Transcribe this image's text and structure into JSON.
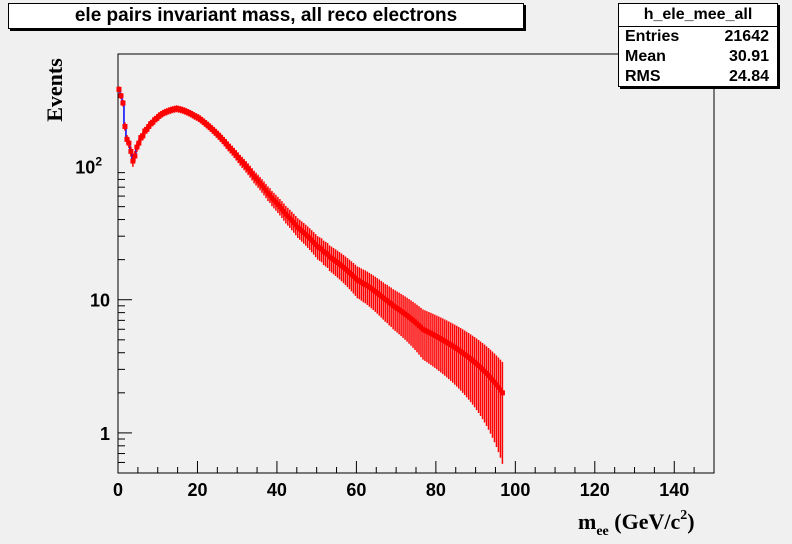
{
  "chart_data": {
    "type": "histogram",
    "title": "ele pairs invariant mass, all reco electrons",
    "xlabel_main": "m",
    "xlabel_sub": "ee",
    "xlabel_unit": " (GeV/c",
    "xlabel_sup": "2",
    "xlabel_close": ")",
    "ylabel": "Events",
    "xlim": [
      0,
      150
    ],
    "ylim": [
      0.5,
      700
    ],
    "yscale": "log",
    "x_ticks": [
      "0",
      "20",
      "40",
      "60",
      "80",
      "100",
      "120",
      "140"
    ],
    "y_ticks": [
      {
        "value": 1,
        "label": "1"
      },
      {
        "value": 10,
        "label": "10"
      },
      {
        "value": 100,
        "label": "10",
        "sup": "2"
      }
    ],
    "series": [
      {
        "type": "histogram-line",
        "color": "#0000ff",
        "bin_width": 0.5,
        "x_start": 0,
        "values": [
          380,
          340,
          300,
          200,
          160,
          150,
          130,
          110,
          120,
          140,
          150,
          165,
          170,
          185,
          190,
          200,
          210,
          215,
          225,
          230,
          238,
          245,
          250,
          255,
          258,
          262,
          265,
          268,
          270,
          272,
          270,
          268,
          265,
          262,
          258,
          254,
          250,
          245,
          240,
          236,
          232,
          226,
          220,
          214,
          208,
          202,
          196,
          190,
          184,
          178,
          172,
          166,
          160,
          154,
          148,
          142,
          137,
          132,
          127,
          122,
          117,
          112,
          108,
          104,
          100,
          96,
          92,
          88,
          84,
          81,
          78,
          75,
          72,
          69,
          66,
          63,
          61,
          58,
          56,
          54,
          52,
          50,
          48,
          46,
          44,
          42.5,
          41,
          39.5,
          38,
          36.5,
          35,
          34,
          33,
          32,
          31,
          30,
          29,
          28,
          27,
          26,
          25,
          24.5,
          24,
          23,
          22.5,
          22,
          21,
          20.5,
          20,
          19.5,
          19,
          18.5,
          18,
          17.5,
          17,
          16.5,
          16,
          15.5,
          15,
          14.5,
          14,
          13.8,
          13.5,
          13.2,
          13,
          12.7,
          12.4,
          12.1,
          11.8,
          11.5,
          11.2,
          10.9,
          10.6,
          10.3,
          10,
          9.8,
          9.5,
          9.3,
          9,
          8.8,
          8.6,
          8.4,
          8.2,
          8,
          7.8,
          7.6,
          7.4,
          7.2,
          7,
          6.8,
          6.6,
          6.4,
          6.2,
          6,
          5.9,
          5.8,
          5.7,
          5.6,
          5.5,
          5.4,
          5.3,
          5.2,
          5.1,
          5,
          4.9,
          4.8,
          4.7,
          4.6,
          4.5,
          4.4,
          4.3,
          4.2,
          4.1,
          4,
          3.9,
          3.8,
          3.7,
          3.6,
          3.5,
          3.4,
          3.3,
          3.2,
          3.1,
          3,
          2.9,
          2.8,
          2.7,
          2.6,
          2.5,
          2.4,
          2.3,
          2.2,
          2.1,
          2
        ]
      },
      {
        "type": "errorbar-markers",
        "color": "#ff0000",
        "bin_width": 0.5,
        "x_start": 0,
        "note": "same values as blue histogram with poisson error bars"
      }
    ]
  },
  "stats": {
    "name": "h_ele_mee_all",
    "rows": [
      {
        "label": "Entries",
        "value": "21642"
      },
      {
        "label": "Mean",
        "value": "30.91"
      },
      {
        "label": "RMS",
        "value": "24.84"
      }
    ]
  },
  "colors": {
    "frame_bg": "#f0f0f0",
    "plot_bg": "#f0f0f0",
    "hist_line": "#0000ff",
    "markers": "#ff0000"
  }
}
